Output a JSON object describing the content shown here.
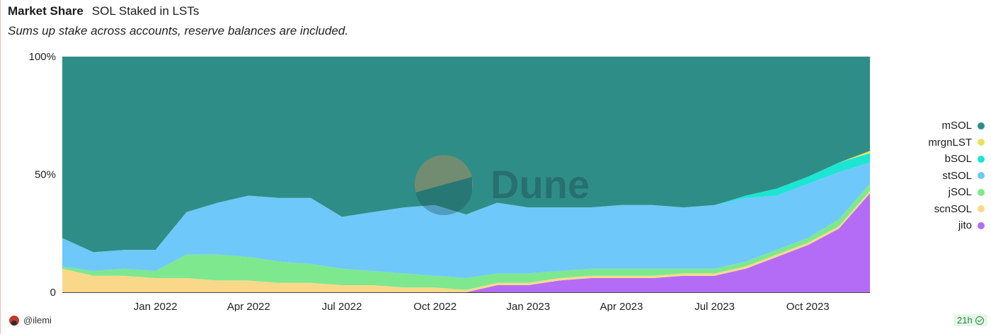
{
  "header": {
    "title": "Market Share",
    "subtitle": "SOL Staked in LSTs",
    "description": "Sums up stake across accounts, reserve balances are included."
  },
  "watermark": "Dune",
  "footer": {
    "username": "@ilemi",
    "refresh_badge": "21h"
  },
  "chart_data": {
    "type": "area",
    "stacked": true,
    "normalized": true,
    "y_ticks": [
      "100%",
      "50%",
      "0"
    ],
    "ylim": [
      0,
      100
    ],
    "x_ticks": [
      "Jan 2022",
      "Apr 2022",
      "Jul 2022",
      "Oct 2022",
      "Jan 2023",
      "Apr 2023",
      "Jul 2023",
      "Oct 2023"
    ],
    "x": [
      "2021-10",
      "2021-11",
      "2021-12",
      "2022-01",
      "2022-02",
      "2022-03",
      "2022-04",
      "2022-05",
      "2022-06",
      "2022-07",
      "2022-08",
      "2022-09",
      "2022-10",
      "2022-11",
      "2022-12",
      "2023-01",
      "2023-02",
      "2023-03",
      "2023-04",
      "2023-05",
      "2023-06",
      "2023-07",
      "2023-08",
      "2023-09",
      "2023-10",
      "2023-11",
      "2023-12"
    ],
    "legend_position": "right",
    "series": [
      {
        "name": "jito",
        "color": "#b46cf7",
        "values": [
          0,
          0,
          0,
          0,
          0,
          0,
          0,
          0,
          0,
          0,
          0,
          0,
          0,
          0,
          3,
          3,
          5,
          6,
          6,
          6,
          7,
          7,
          10,
          15,
          20,
          27,
          42
        ]
      },
      {
        "name": "scnSOL",
        "color": "#f9d88a",
        "values": [
          10,
          7,
          7,
          6,
          6,
          5,
          5,
          4,
          4,
          3,
          3,
          2,
          2,
          1,
          1,
          1,
          1,
          1,
          1,
          1,
          1,
          1,
          1,
          1,
          1,
          1,
          1
        ]
      },
      {
        "name": "jSOL",
        "color": "#7ee88f",
        "values": [
          1,
          2,
          3,
          3,
          10,
          11,
          10,
          9,
          8,
          7,
          6,
          6,
          5,
          5,
          4,
          4,
          3,
          3,
          3,
          3,
          2,
          2,
          2,
          2,
          2,
          3,
          3
        ]
      },
      {
        "name": "stSOL",
        "color": "#6fc8fa",
        "values": [
          12,
          8,
          8,
          9,
          18,
          22,
          26,
          27,
          28,
          22,
          25,
          28,
          30,
          27,
          30,
          28,
          27,
          26,
          27,
          27,
          26,
          27,
          27,
          23,
          23,
          20,
          9
        ]
      },
      {
        "name": "bSOL",
        "color": "#1ce5d2",
        "values": [
          0,
          0,
          0,
          0,
          0,
          0,
          0,
          0,
          0,
          0,
          0,
          0,
          0,
          0,
          0,
          0,
          0,
          0,
          0,
          0,
          0,
          0,
          1,
          3,
          3,
          4,
          4
        ]
      },
      {
        "name": "mrgnLST",
        "color": "#e3e560",
        "values": [
          0,
          0,
          0,
          0,
          0,
          0,
          0,
          0,
          0,
          0,
          0,
          0,
          0,
          0,
          0,
          0,
          0,
          0,
          0,
          0,
          0,
          0,
          0,
          0,
          0,
          0,
          1
        ]
      },
      {
        "name": "mSOL",
        "color": "#2e8e87",
        "values": [
          77,
          83,
          82,
          82,
          66,
          62,
          59,
          60,
          60,
          68,
          66,
          64,
          63,
          67,
          62,
          64,
          64,
          64,
          63,
          63,
          64,
          63,
          59,
          56,
          51,
          45,
          40
        ]
      }
    ]
  }
}
